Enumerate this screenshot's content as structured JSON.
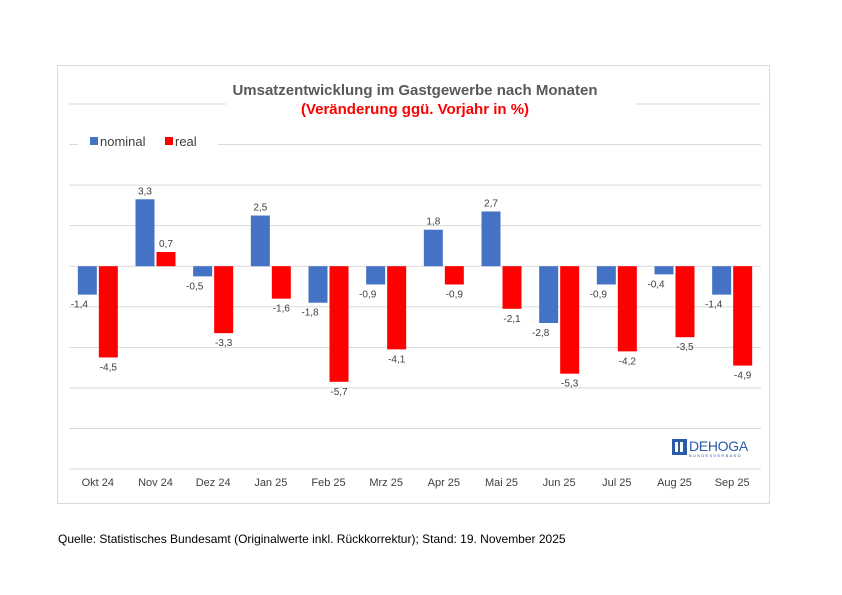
{
  "chart_data": {
    "type": "bar",
    "title": "Umsatzentwicklung im Gastgewerbe nach Monaten",
    "subtitle": "(Veränderung ggü. Vorjahr in %)",
    "xlabel": "",
    "ylabel": "",
    "ylim": [
      -10,
      8
    ],
    "ytick_step": 2,
    "y_axis_labels_visible": false,
    "grid": true,
    "legend_position": "top-left",
    "categories": [
      "Okt 24",
      "Nov 24",
      "Dez 24",
      "Jan 25",
      "Feb 25",
      "Mrz 25",
      "Apr 25",
      "Mai 25",
      "Jun 25",
      "Jul 25",
      "Aug 25",
      "Sep 25"
    ],
    "series": [
      {
        "name": "nominal",
        "color": "#4472c4",
        "values": [
          -1.4,
          3.3,
          -0.5,
          2.5,
          -1.8,
          -0.9,
          1.8,
          2.7,
          -2.8,
          -0.9,
          -0.4,
          -1.4
        ],
        "labels": [
          "-1,4",
          "3,3",
          "-0,5",
          "2,5",
          "-1,8",
          "-0,9",
          "1,8",
          "2,7",
          "-2,8",
          "-0,9",
          "-0,4",
          "-1,4"
        ]
      },
      {
        "name": "real",
        "color": "#ff0000",
        "values": [
          -4.5,
          0.7,
          -3.3,
          -1.6,
          -5.7,
          -4.1,
          -0.9,
          -2.1,
          -5.3,
          -4.2,
          -3.5,
          -4.9
        ],
        "labels": [
          "-4,5",
          "0,7",
          "-3,3",
          "-1,6",
          "-5,7",
          "-4,1",
          "-0,9",
          "-2,1",
          "-5,3",
          "-4,2",
          "-3,5",
          "-4,9"
        ]
      }
    ]
  },
  "logo": {
    "name": "DEHOGA",
    "subtitle": "BUNDESVERBAND",
    "color": "#2a5aa8"
  },
  "source": "Quelle: Statistisches Bundesamt (Originalwerte inkl. Rückkorrektur); Stand: 19. November 2025"
}
